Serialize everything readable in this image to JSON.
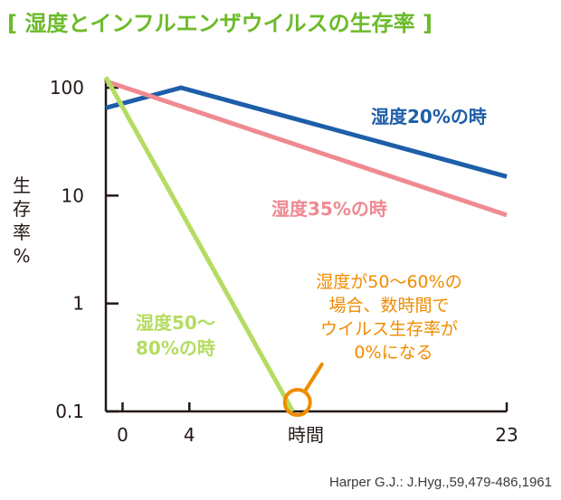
{
  "chart_data": {
    "type": "line",
    "title": "[ 湿度とインフルエンザウイルスの生存率 ]",
    "ylabel": "生存率%",
    "xlabel": "時間",
    "y_scale": "log",
    "ylim": [
      0.1,
      100
    ],
    "y_ticks": [
      {
        "value": 100,
        "label": "100"
      },
      {
        "value": 10,
        "label": "10"
      },
      {
        "value": 1,
        "label": "1"
      },
      {
        "value": 0.1,
        "label": "0.1"
      }
    ],
    "xlim": [
      -1,
      23
    ],
    "x_ticks": [
      {
        "value": 0,
        "label": "0"
      },
      {
        "value": 4,
        "label": "4"
      },
      {
        "value": 23,
        "label": "23"
      }
    ],
    "series": [
      {
        "name": "湿度20%の時",
        "color": "#1d5ea8",
        "points": [
          [
            -1,
            65
          ],
          [
            3.5,
            100
          ],
          [
            23,
            15
          ]
        ]
      },
      {
        "name": "湿度35%の時",
        "color": "#ef8a92",
        "points": [
          [
            -1,
            115
          ],
          [
            23,
            6.6
          ]
        ]
      },
      {
        "name_lines": [
          "湿度50〜",
          "80%の時"
        ],
        "color": "#b5dc62",
        "points": [
          [
            -1,
            125
          ],
          [
            10.2,
            0.1
          ]
        ]
      }
    ],
    "annotation": {
      "lines": [
        "湿度が50〜60%の",
        "場合、数時間で",
        "ウイルス生存率が",
        "0%になる"
      ],
      "color": "#f08c00",
      "at": [
        10.2,
        0.1
      ]
    },
    "citation": "Harper G.J.: J.Hyg.,59,479-486,1961",
    "colors": {
      "title": "#6cbb2a",
      "axis": "#231815"
    }
  }
}
